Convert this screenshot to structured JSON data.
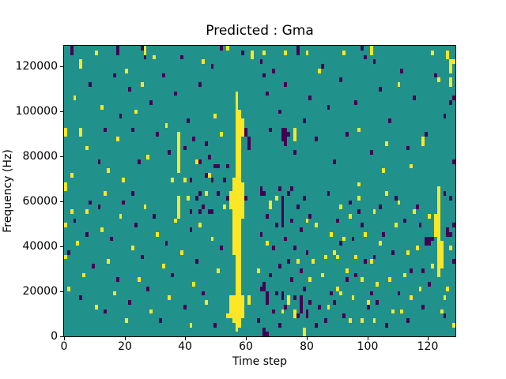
{
  "figure": {
    "title": "Predicted : Gma",
    "xlabel": "Time step",
    "ylabel": "Frequency (Hz)"
  },
  "chart_data": {
    "type": "heatmap",
    "title": "Predicted : Gma",
    "xlabel": "Time step",
    "ylabel": "Frequency (Hz)",
    "x_range": [
      0,
      129
    ],
    "y_range": [
      0,
      129000
    ],
    "x_ticks": [
      {
        "v": 0,
        "label": "0"
      },
      {
        "v": 20,
        "label": "20"
      },
      {
        "v": 40,
        "label": "40"
      },
      {
        "v": 60,
        "label": "60"
      },
      {
        "v": 80,
        "label": "80"
      },
      {
        "v": 100,
        "label": "100"
      },
      {
        "v": 120,
        "label": "120"
      }
    ],
    "y_ticks": [
      {
        "v": 0,
        "label": "0"
      },
      {
        "v": 20000,
        "label": "20000"
      },
      {
        "v": 40000,
        "label": "40000"
      },
      {
        "v": 60000,
        "label": "60000"
      },
      {
        "v": 80000,
        "label": "80000"
      },
      {
        "v": 100000,
        "label": "100000"
      },
      {
        "v": 120000,
        "label": "120000"
      }
    ],
    "grid": {
      "cols": 128,
      "rows": 64,
      "freq_per_row_hz": 2000
    },
    "colors": {
      "low": "#440154",
      "mid": "#21918c",
      "high": "#fde725",
      "frame": "#000000",
      "background": "#ffffff"
    },
    "value_levels": {
      "0": "low/purple",
      "1": "mid/teal background",
      "2": "high/yellow"
    },
    "background_value": 1,
    "legend": "none",
    "grid_lines": "off",
    "runs": [
      [
        56,
        1,
        53,
        2
      ],
      [
        57,
        2,
        49,
        2
      ],
      [
        55,
        3,
        8,
        2
      ],
      [
        55,
        18,
        34,
        2
      ],
      [
        58,
        4,
        8,
        2
      ],
      [
        58,
        26,
        33,
        2
      ],
      [
        58,
        44,
        47,
        2
      ],
      [
        54,
        4,
        8,
        2
      ],
      [
        54,
        28,
        31,
        2
      ],
      [
        37,
        36,
        44,
        2
      ],
      [
        37,
        26,
        30,
        2
      ],
      [
        122,
        13,
        32,
        2
      ],
      [
        121,
        22,
        26,
        2
      ],
      [
        123,
        15,
        20,
        2
      ],
      [
        71,
        24,
        30,
        0
      ],
      [
        77,
        5,
        8,
        0
      ],
      [
        66,
        7,
        9,
        0
      ],
      [
        118,
        20,
        21,
        0
      ],
      [
        119,
        20,
        21,
        0
      ],
      [
        60,
        41,
        43,
        0
      ],
      [
        65,
        0,
        1,
        0
      ],
      [
        65,
        10,
        11,
        0
      ]
    ],
    "cells_purple": [
      [
        2,
        63
      ],
      [
        2,
        62
      ],
      [
        17,
        63
      ],
      [
        17,
        62
      ],
      [
        25,
        63
      ],
      [
        51,
        63
      ],
      [
        58,
        62
      ],
      [
        8,
        55
      ],
      [
        13,
        45
      ],
      [
        16,
        57
      ],
      [
        18,
        48
      ],
      [
        21,
        54
      ],
      [
        22,
        45
      ],
      [
        24,
        38
      ],
      [
        26,
        61
      ],
      [
        28,
        51
      ],
      [
        30,
        44
      ],
      [
        32,
        57
      ],
      [
        34,
        40
      ],
      [
        36,
        53
      ],
      [
        38,
        61
      ],
      [
        40,
        47
      ],
      [
        42,
        43
      ],
      [
        44,
        55
      ],
      [
        44,
        38
      ],
      [
        46,
        42
      ],
      [
        48,
        59
      ],
      [
        50,
        37
      ],
      [
        39,
        41
      ],
      [
        41,
        34
      ],
      [
        46,
        35
      ],
      [
        47,
        39
      ],
      [
        48,
        34
      ],
      [
        49,
        37
      ],
      [
        11,
        38
      ],
      [
        1,
        18
      ],
      [
        3,
        25
      ],
      [
        5,
        8
      ],
      [
        7,
        22
      ],
      [
        9,
        15
      ],
      [
        11,
        28
      ],
      [
        13,
        5
      ],
      [
        15,
        21
      ],
      [
        17,
        12
      ],
      [
        19,
        29
      ],
      [
        21,
        7
      ],
      [
        23,
        24
      ],
      [
        25,
        17
      ],
      [
        27,
        10
      ],
      [
        29,
        26
      ],
      [
        31,
        3
      ],
      [
        33,
        20
      ],
      [
        35,
        13
      ],
      [
        39,
        6
      ],
      [
        41,
        23
      ],
      [
        43,
        16
      ],
      [
        45,
        9
      ],
      [
        47,
        27
      ],
      [
        49,
        2
      ],
      [
        51,
        19
      ],
      [
        44,
        31
      ],
      [
        22,
        31
      ],
      [
        43,
        30
      ],
      [
        45,
        28
      ],
      [
        50,
        31
      ],
      [
        44,
        27
      ],
      [
        48,
        27
      ],
      [
        41,
        27
      ],
      [
        8,
        29
      ],
      [
        59,
        44
      ],
      [
        59,
        45
      ],
      [
        59,
        30
      ],
      [
        53,
        37
      ],
      [
        52,
        34
      ],
      [
        53,
        30
      ],
      [
        63,
        3
      ],
      [
        64,
        10
      ],
      [
        64,
        22
      ],
      [
        64,
        31
      ],
      [
        64,
        32
      ],
      [
        66,
        0
      ],
      [
        66,
        26
      ],
      [
        67,
        13
      ],
      [
        68,
        5
      ],
      [
        68,
        19
      ],
      [
        69,
        9
      ],
      [
        69,
        24
      ],
      [
        70,
        2
      ],
      [
        70,
        15
      ],
      [
        70,
        32
      ],
      [
        71,
        8
      ],
      [
        71,
        9
      ],
      [
        72,
        6
      ],
      [
        72,
        21
      ],
      [
        73,
        16
      ],
      [
        73,
        31
      ],
      [
        74,
        12
      ],
      [
        74,
        25
      ],
      [
        74,
        32
      ],
      [
        75,
        8
      ],
      [
        75,
        19
      ],
      [
        76,
        4
      ],
      [
        76,
        28
      ],
      [
        77,
        14
      ],
      [
        77,
        23
      ],
      [
        78,
        10
      ],
      [
        78,
        30
      ],
      [
        79,
        4
      ],
      [
        79,
        5
      ],
      [
        79,
        18
      ],
      [
        80,
        7
      ],
      [
        80,
        26
      ],
      [
        65,
        31
      ],
      [
        82,
        2
      ],
      [
        83,
        6
      ],
      [
        71,
        43
      ],
      [
        71,
        44
      ],
      [
        71,
        45
      ],
      [
        72,
        42
      ],
      [
        72,
        43
      ],
      [
        72,
        44
      ],
      [
        72,
        45
      ],
      [
        73,
        44
      ],
      [
        64,
        60
      ],
      [
        65,
        57
      ],
      [
        66,
        53
      ],
      [
        67,
        45
      ],
      [
        68,
        58
      ],
      [
        70,
        49
      ],
      [
        72,
        55
      ],
      [
        75,
        40
      ],
      [
        76,
        62
      ],
      [
        76,
        63
      ],
      [
        78,
        47
      ],
      [
        80,
        52
      ],
      [
        82,
        43
      ],
      [
        84,
        59
      ],
      [
        86,
        50
      ],
      [
        88,
        38
      ],
      [
        90,
        56
      ],
      [
        92,
        44
      ],
      [
        95,
        51
      ],
      [
        97,
        63
      ],
      [
        98,
        61
      ],
      [
        100,
        40
      ],
      [
        101,
        60
      ],
      [
        103,
        54
      ],
      [
        106,
        47
      ],
      [
        110,
        58
      ],
      [
        112,
        41
      ],
      [
        114,
        52
      ],
      [
        118,
        44
      ],
      [
        121,
        57
      ],
      [
        124,
        48
      ],
      [
        126,
        51
      ],
      [
        127,
        38
      ],
      [
        127,
        52
      ],
      [
        120,
        21
      ],
      [
        125,
        22
      ],
      [
        125,
        23
      ],
      [
        126,
        22
      ],
      [
        117,
        14
      ],
      [
        124,
        31
      ],
      [
        127,
        24
      ],
      [
        107,
        18
      ],
      [
        109,
        9
      ],
      [
        111,
        25
      ],
      [
        113,
        14
      ],
      [
        115,
        28
      ],
      [
        117,
        6
      ],
      [
        119,
        11
      ],
      [
        124,
        4
      ],
      [
        126,
        30
      ],
      [
        127,
        16
      ],
      [
        85,
        3
      ],
      [
        87,
        9
      ],
      [
        89,
        25
      ],
      [
        91,
        4
      ],
      [
        93,
        29
      ],
      [
        95,
        13
      ],
      [
        97,
        24
      ],
      [
        99,
        6
      ],
      [
        101,
        17
      ],
      [
        103,
        28
      ],
      [
        105,
        2
      ],
      [
        90,
        20
      ],
      [
        94,
        21
      ],
      [
        98,
        16
      ],
      [
        102,
        7
      ],
      [
        86,
        31
      ],
      [
        92,
        12
      ],
      [
        96,
        27
      ],
      [
        100,
        9
      ],
      [
        104,
        22
      ],
      [
        108,
        30
      ],
      [
        112,
        3
      ],
      [
        116,
        24
      ],
      [
        88,
        7
      ]
    ],
    "cells_yellow": [
      [
        26,
        63
      ],
      [
        26,
        62
      ],
      [
        53,
        63
      ],
      [
        61,
        61
      ],
      [
        61,
        62
      ],
      [
        5,
        59
      ],
      [
        5,
        60
      ],
      [
        5,
        44
      ],
      [
        5,
        45
      ],
      [
        0,
        44
      ],
      [
        0,
        45
      ],
      [
        3,
        52
      ],
      [
        7,
        41
      ],
      [
        10,
        62
      ],
      [
        12,
        50
      ],
      [
        14,
        36
      ],
      [
        17,
        43
      ],
      [
        20,
        58
      ],
      [
        23,
        49
      ],
      [
        25,
        55
      ],
      [
        27,
        39
      ],
      [
        29,
        61
      ],
      [
        33,
        46
      ],
      [
        35,
        34
      ],
      [
        39,
        34
      ],
      [
        43,
        38
      ],
      [
        45,
        60
      ],
      [
        47,
        35
      ],
      [
        49,
        48
      ],
      [
        51,
        44
      ],
      [
        2,
        35
      ],
      [
        19,
        34
      ],
      [
        0,
        32
      ],
      [
        0,
        33
      ],
      [
        0,
        24
      ],
      [
        0,
        17
      ],
      [
        1,
        10
      ],
      [
        2,
        27
      ],
      [
        4,
        20
      ],
      [
        6,
        13
      ],
      [
        10,
        6
      ],
      [
        12,
        23
      ],
      [
        14,
        16
      ],
      [
        16,
        9
      ],
      [
        18,
        26
      ],
      [
        20,
        3
      ],
      [
        22,
        19
      ],
      [
        24,
        12
      ],
      [
        26,
        28
      ],
      [
        28,
        5
      ],
      [
        30,
        22
      ],
      [
        32,
        15
      ],
      [
        34,
        8
      ],
      [
        36,
        25
      ],
      [
        38,
        18
      ],
      [
        40,
        30
      ],
      [
        42,
        11
      ],
      [
        44,
        24
      ],
      [
        46,
        7
      ],
      [
        48,
        21
      ],
      [
        50,
        14
      ],
      [
        52,
        28
      ],
      [
        53,
        4
      ],
      [
        46,
        31
      ],
      [
        41,
        2
      ],
      [
        7,
        27
      ],
      [
        13,
        31
      ],
      [
        60,
        7
      ],
      [
        60,
        8
      ],
      [
        67,
        28
      ],
      [
        67,
        29
      ],
      [
        73,
        7
      ],
      [
        73,
        8
      ],
      [
        75,
        4
      ],
      [
        75,
        5
      ],
      [
        78,
        0
      ],
      [
        78,
        1
      ],
      [
        66,
        20
      ],
      [
        69,
        30
      ],
      [
        71,
        5
      ],
      [
        76,
        16
      ],
      [
        79,
        25
      ],
      [
        80,
        12
      ],
      [
        63,
        14
      ],
      [
        75,
        43
      ],
      [
        75,
        44
      ],
      [
        75,
        45
      ],
      [
        65,
        62
      ],
      [
        72,
        62
      ],
      [
        79,
        62
      ],
      [
        83,
        58
      ],
      [
        91,
        62
      ],
      [
        96,
        45
      ],
      [
        100,
        62
      ],
      [
        100,
        63
      ],
      [
        105,
        42
      ],
      [
        109,
        55
      ],
      [
        113,
        37
      ],
      [
        117,
        42
      ],
      [
        117,
        43
      ],
      [
        120,
        62
      ],
      [
        122,
        56
      ],
      [
        125,
        61
      ],
      [
        125,
        62
      ],
      [
        126,
        55
      ],
      [
        126,
        56
      ],
      [
        126,
        58
      ],
      [
        126,
        59
      ],
      [
        126,
        60
      ],
      [
        127,
        60
      ],
      [
        96,
        33
      ],
      [
        104,
        36
      ],
      [
        106,
        12
      ],
      [
        108,
        24
      ],
      [
        110,
        5
      ],
      [
        112,
        18
      ],
      [
        114,
        27
      ],
      [
        116,
        10
      ],
      [
        120,
        15
      ],
      [
        124,
        8
      ],
      [
        126,
        19
      ],
      [
        127,
        2
      ],
      [
        85,
        17
      ],
      [
        87,
        22
      ],
      [
        89,
        10
      ],
      [
        89,
        17
      ],
      [
        90,
        9
      ],
      [
        91,
        21
      ],
      [
        92,
        14
      ],
      [
        93,
        3
      ],
      [
        93,
        26
      ],
      [
        94,
        8
      ],
      [
        95,
        17
      ],
      [
        96,
        30
      ],
      [
        97,
        3
      ],
      [
        97,
        12
      ],
      [
        98,
        22
      ],
      [
        99,
        7
      ],
      [
        100,
        16
      ],
      [
        101,
        3
      ],
      [
        101,
        27
      ],
      [
        102,
        11
      ],
      [
        103,
        20
      ],
      [
        90,
        28
      ],
      [
        105,
        31
      ],
      [
        107,
        5
      ],
      [
        109,
        29
      ],
      [
        111,
        13
      ],
      [
        113,
        8
      ],
      [
        115,
        19
      ],
      [
        119,
        26
      ],
      [
        123,
        5
      ],
      [
        125,
        10
      ],
      [
        84,
        13
      ],
      [
        82,
        24
      ],
      [
        81,
        16
      ],
      [
        86,
        6
      ],
      [
        88,
        18
      ]
    ]
  }
}
